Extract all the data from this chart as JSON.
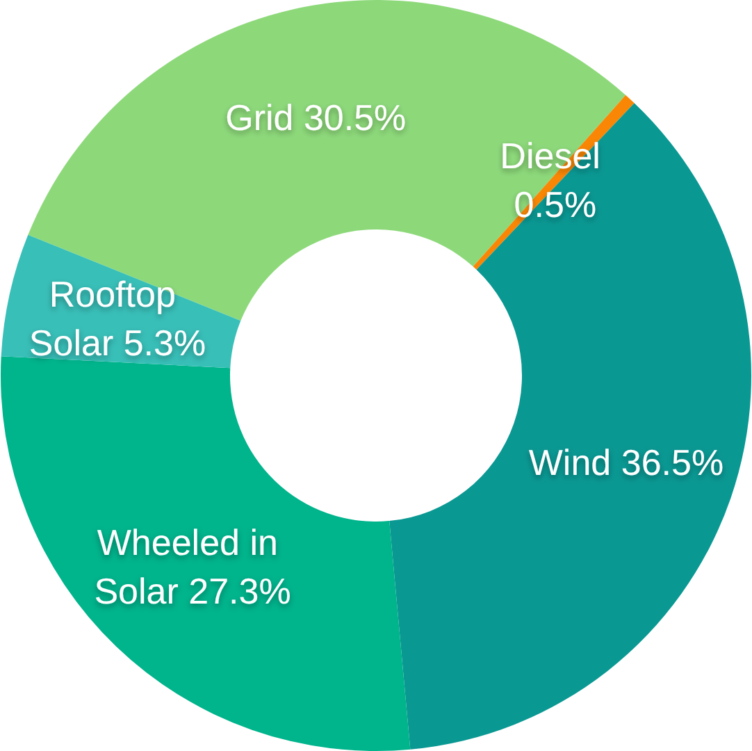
{
  "chart_data": {
    "type": "donut",
    "categories": [
      "Grid",
      "Diesel",
      "Wind",
      "Wheeled in Solar",
      "Rooftop Solar"
    ],
    "values": [
      30.5,
      0.5,
      36.5,
      27.3,
      5.3
    ],
    "value_labels": [
      "30.5%",
      "0.5%",
      "36.5%",
      "27.3%",
      "5.3%"
    ],
    "colors": [
      "#8dd97a",
      "#f98705",
      "#0a9893",
      "#00b48c",
      "#38bfb8"
    ]
  }
}
